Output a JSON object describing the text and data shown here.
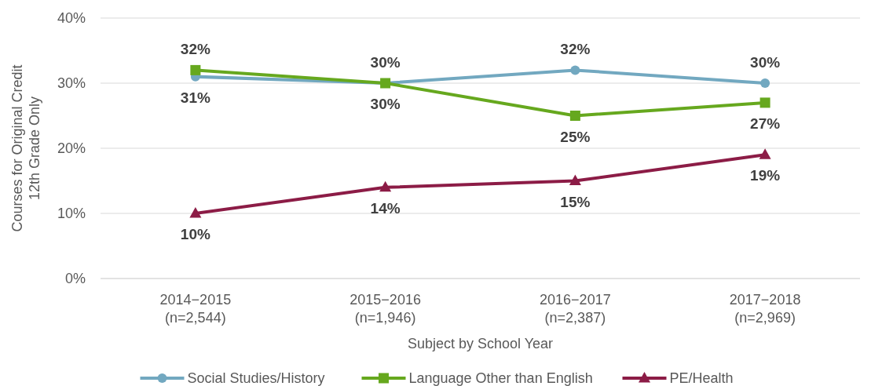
{
  "chart_data": {
    "type": "line",
    "xlabel": "Subject by School Year",
    "ylabel": "Courses for Original Credit 12th Grade Only",
    "categories": [
      "2014−2015\n(n=2,544)",
      "2015−2016\n(n=1,946)",
      "2016−2017\n(n=2,387)",
      "2017−2018\n(n=2,969)"
    ],
    "series": [
      {
        "name": "Social Studies/History",
        "color": "#72a8c0",
        "marker": "circle",
        "values": [
          31,
          30,
          32,
          30
        ],
        "value_labels": [
          "31%",
          "30%",
          "32%",
          "30%"
        ]
      },
      {
        "name": "Language Other than English",
        "color": "#66a81e",
        "marker": "square",
        "values": [
          32,
          30,
          25,
          27
        ],
        "value_labels": [
          "32%",
          "30%",
          "25%",
          "27%"
        ]
      },
      {
        "name": "PE/Health",
        "color": "#8c1c46",
        "marker": "triangle",
        "values": [
          10,
          14,
          15,
          19
        ],
        "value_labels": [
          "10%",
          "14%",
          "15%",
          "19%"
        ]
      }
    ],
    "ylim": [
      0,
      40
    ],
    "yticks": [
      {
        "value": 0,
        "label": "0%"
      },
      {
        "value": 10,
        "label": "10%"
      },
      {
        "value": 20,
        "label": "20%"
      },
      {
        "value": 30,
        "label": "30%"
      },
      {
        "value": 40,
        "label": "40%"
      }
    ],
    "grid": "y",
    "legend": "bottom",
    "line_style": "solid"
  }
}
